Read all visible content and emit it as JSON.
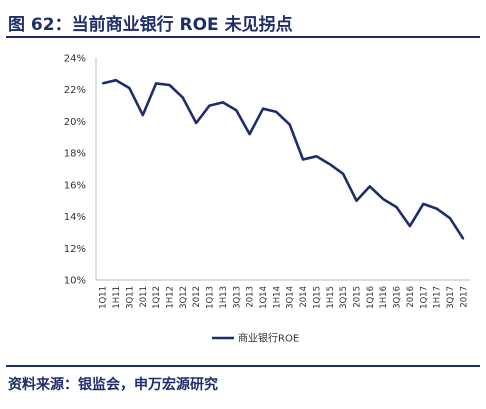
{
  "figure": {
    "title": "图 62：当前商业银行 ROE 未见拐点",
    "source": "资料来源：银监会，申万宏源研究"
  },
  "colors": {
    "line": "#1f2d6b",
    "axis": "#bbbbbb",
    "text": "#333333"
  },
  "chart_data": {
    "type": "line",
    "categories": [
      "1Q11",
      "1H11",
      "3Q11",
      "2011",
      "1Q12",
      "1H12",
      "3Q12",
      "2012",
      "1Q13",
      "1H13",
      "3Q13",
      "2013",
      "1Q14",
      "1H14",
      "3Q14",
      "2014",
      "1Q15",
      "1H15",
      "3Q15",
      "2015",
      "1Q16",
      "1H16",
      "3Q16",
      "2016",
      "1Q17",
      "1H17",
      "3Q17",
      "2017"
    ],
    "series": [
      {
        "name": "商业银行ROE",
        "values": [
          22.4,
          22.6,
          22.1,
          20.4,
          22.4,
          22.3,
          21.5,
          19.9,
          21.0,
          21.2,
          20.7,
          19.2,
          20.8,
          20.6,
          19.8,
          17.6,
          17.8,
          17.3,
          16.7,
          15.0,
          15.9,
          15.1,
          14.6,
          13.4,
          14.8,
          14.5,
          13.9,
          12.6
        ]
      }
    ],
    "yticks": [
      "24%",
      "22%",
      "20%",
      "18%",
      "16%",
      "14%",
      "12%",
      "10%"
    ],
    "ylim": [
      10,
      24
    ],
    "grid": false,
    "legend_position": "bottom-center"
  }
}
